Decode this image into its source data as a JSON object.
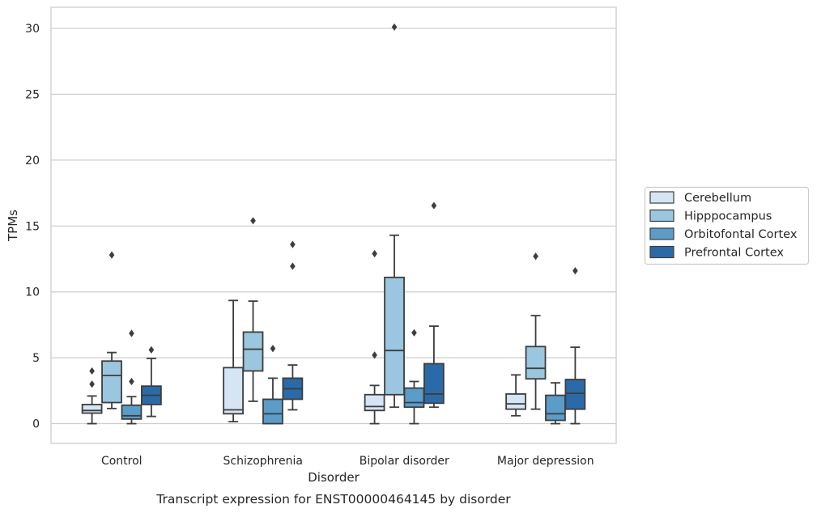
{
  "chart_data": {
    "type": "box",
    "title": "",
    "caption": "Transcript expression for ENST00000464145 by disorder",
    "xlabel": "Disorder",
    "ylabel": "TPMs",
    "ylim": [
      -1.5,
      31.6
    ],
    "yticks": [
      0,
      5,
      10,
      15,
      20,
      25,
      30
    ],
    "grid": "horizontal",
    "legend_position": "right",
    "categories": [
      "Control",
      "Schizophrenia",
      "Bipolar disorder",
      "Major depression"
    ],
    "series": [
      {
        "name": "Cerebellum",
        "color": "#d6e5f3",
        "boxes": [
          {
            "whisker_low": 0.0,
            "q1": 0.8,
            "median": 1.0,
            "q3": 1.45,
            "whisker_high": 2.1,
            "outliers": [
              3.0,
              4.0
            ]
          },
          {
            "whisker_low": 0.15,
            "q1": 0.75,
            "median": 1.05,
            "q3": 4.25,
            "whisker_high": 9.35,
            "outliers": []
          },
          {
            "whisker_low": 0.0,
            "q1": 1.0,
            "median": 1.3,
            "q3": 2.2,
            "whisker_high": 2.9,
            "outliers": [
              5.2,
              12.9
            ]
          },
          {
            "whisker_low": 0.6,
            "q1": 1.1,
            "median": 1.5,
            "q3": 2.25,
            "whisker_high": 3.7,
            "outliers": []
          }
        ]
      },
      {
        "name": "Hipppocampus",
        "color": "#9ac7df",
        "boxes": [
          {
            "whisker_low": 1.15,
            "q1": 1.6,
            "median": 3.65,
            "q3": 4.75,
            "whisker_high": 5.4,
            "outliers": [
              12.8
            ]
          },
          {
            "whisker_low": 1.7,
            "q1": 4.0,
            "median": 5.65,
            "q3": 6.95,
            "whisker_high": 9.3,
            "outliers": [
              15.4
            ]
          },
          {
            "whisker_low": 1.25,
            "q1": 2.2,
            "median": 5.55,
            "q3": 11.1,
            "whisker_high": 14.3,
            "outliers": [
              30.1
            ]
          },
          {
            "whisker_low": 1.1,
            "q1": 3.4,
            "median": 4.2,
            "q3": 5.85,
            "whisker_high": 8.2,
            "outliers": [
              12.7
            ]
          }
        ]
      },
      {
        "name": "Orbitofontal Cortex",
        "color": "#5b9cc8",
        "boxes": [
          {
            "whisker_low": 0.0,
            "q1": 0.35,
            "median": 0.6,
            "q3": 1.4,
            "whisker_high": 2.05,
            "outliers": [
              3.2,
              6.85
            ]
          },
          {
            "whisker_low": 0.0,
            "q1": 0.0,
            "median": 0.75,
            "q3": 1.85,
            "whisker_high": 3.45,
            "outliers": [
              5.7
            ]
          },
          {
            "whisker_low": 0.0,
            "q1": 1.25,
            "median": 1.6,
            "q3": 2.7,
            "whisker_high": 3.2,
            "outliers": [
              6.9
            ]
          },
          {
            "whisker_low": 0.0,
            "q1": 0.25,
            "median": 0.75,
            "q3": 2.15,
            "whisker_high": 3.1,
            "outliers": []
          }
        ]
      },
      {
        "name": "Prefrontal Cortex",
        "color": "#2b6aa8",
        "boxes": [
          {
            "whisker_low": 0.55,
            "q1": 1.45,
            "median": 2.15,
            "q3": 2.85,
            "whisker_high": 4.95,
            "outliers": [
              5.6
            ]
          },
          {
            "whisker_low": 1.05,
            "q1": 1.85,
            "median": 2.65,
            "q3": 3.45,
            "whisker_high": 4.45,
            "outliers": [
              11.95,
              13.6
            ]
          },
          {
            "whisker_low": 1.25,
            "q1": 1.55,
            "median": 2.25,
            "q3": 4.55,
            "whisker_high": 7.4,
            "outliers": [
              16.55
            ]
          },
          {
            "whisker_low": 0.0,
            "q1": 1.1,
            "median": 2.3,
            "q3": 3.35,
            "whisker_high": 5.8,
            "outliers": [
              11.6
            ]
          }
        ]
      }
    ]
  }
}
